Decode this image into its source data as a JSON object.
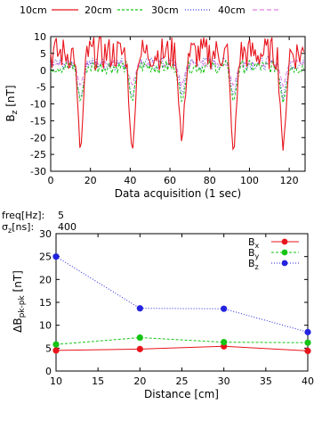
{
  "chart_data": [
    {
      "type": "line",
      "title": "",
      "xlabel": "Data acquisition (1 sec)",
      "ylabel": "B_z [nT]",
      "ylabel_parts": {
        "main": "B",
        "sub": "z",
        "unit": " [nT]"
      },
      "xlim": [
        0,
        128
      ],
      "ylim": [
        -30,
        10
      ],
      "xticks": [
        0,
        20,
        40,
        60,
        80,
        100,
        120
      ],
      "yticks": [
        10,
        5,
        0,
        -5,
        -10,
        -15,
        -20,
        -25,
        -30
      ],
      "legend_position": "top",
      "legend": [
        "10cm",
        "20cm",
        "30cm",
        "40cm"
      ],
      "colors": {
        "20cm": "#e8141c",
        "30cm": "#16c416",
        "40cm": "#3b3bd6",
        "10cm": "#e080e0"
      },
      "dips": [
        {
          "x": 15,
          "values": {
            "20cm": -26,
            "30cm": -10,
            "40cm": -9,
            "10cm": -5
          }
        },
        {
          "x": 41,
          "values": {
            "20cm": -26.5,
            "30cm": -10,
            "40cm": -9,
            "10cm": -5
          }
        },
        {
          "x": 66,
          "values": {
            "20cm": -23,
            "30cm": -10,
            "40cm": -8,
            "10cm": -5
          }
        },
        {
          "x": 92,
          "values": {
            "20cm": -27,
            "30cm": -10,
            "40cm": -8,
            "10cm": -5
          }
        },
        {
          "x": 117,
          "values": {
            "20cm": -25,
            "30cm": -10,
            "40cm": -9,
            "10cm": -5
          }
        }
      ],
      "baseline_ranges": {
        "20cm": [
          0,
          10
        ],
        "30cm": [
          -1,
          3
        ],
        "40cm": [
          0,
          4
        ],
        "10cm": [
          1,
          3
        ]
      }
    },
    {
      "type": "line",
      "title": "",
      "xlabel": "Distance [cm]",
      "ylabel": "ΔB_pk-pk [nT]",
      "ylabel_parts": {
        "pre": "ΔB",
        "sub": "pk-pk",
        "unit": " [nT]"
      },
      "xlim": [
        10,
        40
      ],
      "ylim": [
        0,
        30
      ],
      "xticks": [
        10,
        15,
        20,
        25,
        30,
        35,
        40
      ],
      "yticks": [
        0,
        5,
        10,
        15,
        20,
        25,
        30
      ],
      "legend_position": "top-right",
      "x": [
        10,
        20,
        30,
        40
      ],
      "series": [
        {
          "name": "Bx",
          "label": {
            "main": "B",
            "sub": "x"
          },
          "color": "#e8141c",
          "dash": "",
          "values": [
            4.5,
            4.8,
            5.4,
            4.4
          ]
        },
        {
          "name": "By",
          "label": {
            "main": "B",
            "sub": "y"
          },
          "color": "#16c416",
          "dash": "3,2",
          "values": [
            5.8,
            7.3,
            6.3,
            6.2
          ]
        },
        {
          "name": "Bz",
          "label": {
            "main": "B",
            "sub": "z"
          },
          "color": "#2323e0",
          "dash": "1,2",
          "values": [
            25,
            13.7,
            13.6,
            8.5
          ]
        }
      ],
      "annotations": [
        {
          "label": "freq[Hz]:",
          "value": "5"
        },
        {
          "label_main": "σ",
          "label_sub": "z",
          "label_rest": "[ns]:",
          "value": "400"
        }
      ]
    }
  ]
}
